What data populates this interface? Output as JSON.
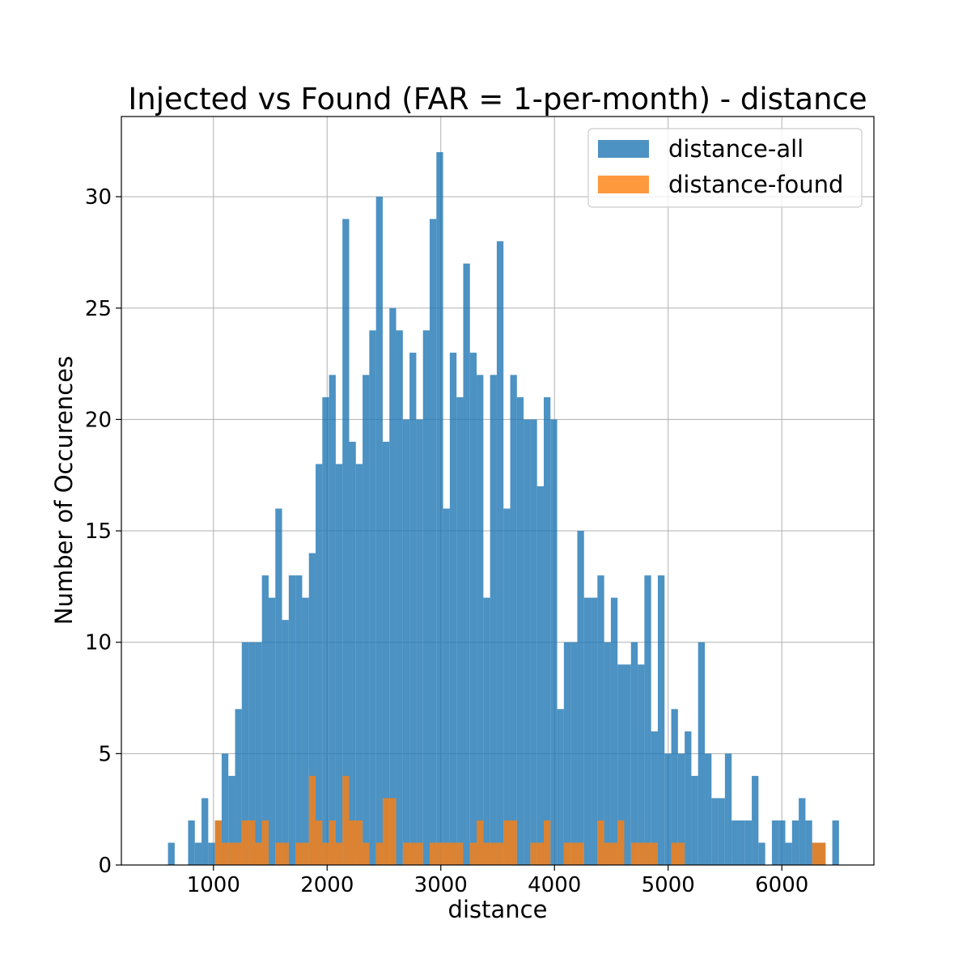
{
  "chart_data": {
    "type": "bar",
    "title": "Injected vs Found (FAR = 1-per-month) - distance",
    "xlabel": "distance",
    "ylabel": "Number of Occurences",
    "xlim": [
      190,
      6810
    ],
    "ylim": [
      0,
      33.6
    ],
    "xticks": [
      1000,
      2000,
      3000,
      4000,
      5000,
      6000
    ],
    "xtick_labels": [
      "1000",
      "2000",
      "3000",
      "4000",
      "5000",
      "6000"
    ],
    "yticks": [
      0,
      5,
      10,
      15,
      20,
      25,
      30
    ],
    "ytick_labels": [
      "0",
      "5",
      "10",
      "15",
      "20",
      "25",
      "30"
    ],
    "grid": true,
    "legend_position": "upper right",
    "bin_start": 600,
    "bin_width": 59.03,
    "series": [
      {
        "name": "distance-all",
        "color": "#1f77b4",
        "opacity": 0.8,
        "values": [
          1,
          0,
          0,
          2,
          1,
          3,
          1,
          2,
          5,
          4,
          7,
          10,
          10,
          10,
          13,
          12,
          16,
          11,
          13,
          13,
          12,
          14,
          18,
          21,
          22,
          18,
          29,
          19,
          18,
          22,
          24,
          30,
          19,
          25,
          24,
          20,
          23,
          20,
          24,
          29,
          32,
          16,
          23,
          21,
          27,
          23,
          22,
          12,
          22,
          28,
          16,
          22,
          21,
          20,
          20,
          17,
          21,
          20,
          7,
          10,
          10,
          15,
          12,
          12,
          13,
          10,
          12,
          9,
          9,
          10,
          9,
          13,
          6,
          13,
          5,
          7,
          5,
          6,
          4,
          10,
          5,
          3,
          3,
          5,
          2,
          2,
          2,
          4,
          1,
          0,
          2,
          2,
          1,
          2,
          3,
          2,
          1,
          1,
          0,
          2
        ]
      },
      {
        "name": "distance-found",
        "color": "#ff7f0e",
        "opacity": 0.8,
        "values": [
          0,
          0,
          0,
          0,
          0,
          0,
          0,
          2,
          1,
          1,
          1,
          2,
          2,
          1,
          2,
          0,
          1,
          1,
          0,
          1,
          1,
          4,
          2,
          1,
          2,
          1,
          4,
          2,
          2,
          1,
          0,
          1,
          3,
          3,
          0,
          1,
          1,
          1,
          0,
          1,
          1,
          1,
          1,
          1,
          0,
          1,
          2,
          1,
          1,
          1,
          2,
          2,
          0,
          0,
          1,
          1,
          2,
          0,
          0,
          1,
          1,
          1,
          0,
          0,
          2,
          1,
          1,
          2,
          0,
          1,
          1,
          1,
          1,
          0,
          0,
          1,
          1,
          0,
          0,
          0,
          0,
          0,
          0,
          0,
          0,
          0,
          0,
          0,
          0,
          0,
          0,
          0,
          0,
          0,
          0,
          0,
          1,
          1,
          0,
          0
        ]
      }
    ]
  }
}
